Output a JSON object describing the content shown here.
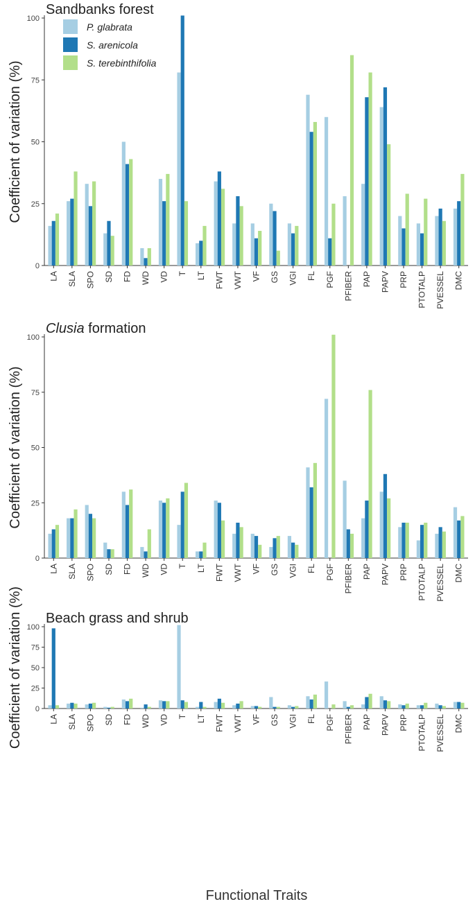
{
  "figure": {
    "xlabel": "Functional  Traits",
    "colors": {
      "P. glabrata": "#a6cee3",
      "S. arenicola": "#1f78b4",
      "S. terebinthifolia": "#b2df8a"
    }
  },
  "chart_data": [
    {
      "type": "bar",
      "title": "Sandbanks forest",
      "title_italic": "",
      "title_rest": "Sandbanks forest",
      "xlabel": "",
      "ylabel": "Coefficient of variation (%)",
      "ylim": [
        0,
        100
      ],
      "yticks": [
        0,
        25,
        50,
        75,
        100
      ],
      "grid": false,
      "legend": "top-left",
      "categories": [
        "LA",
        "SLA",
        "SPO",
        "SD",
        "FD",
        "WD",
        "VD",
        "T",
        "LT",
        "FWT",
        "VWT",
        "VF",
        "GS",
        "VGI",
        "FL",
        "PGF",
        "PFIBER",
        "PAP",
        "PAPV",
        "PRP",
        "PTOTALP",
        "PVESSEL",
        "DMC"
      ],
      "series": [
        {
          "name": "P. glabrata",
          "values": [
            16,
            26,
            33,
            13,
            50,
            7,
            35,
            78,
            9,
            34,
            17,
            17,
            25,
            17,
            69,
            60,
            28,
            33,
            64,
            20,
            17,
            20,
            23
          ]
        },
        {
          "name": "S. arenicola",
          "values": [
            18,
            27,
            24,
            18,
            41,
            3,
            26,
            101,
            10,
            38,
            28,
            11,
            22,
            13,
            54,
            11,
            0,
            68,
            72,
            15,
            13,
            23,
            26
          ]
        },
        {
          "name": "S. terebinthifolia",
          "values": [
            21,
            38,
            34,
            12,
            43,
            7,
            37,
            26,
            16,
            31,
            24,
            14,
            6,
            16,
            58,
            25,
            85,
            78,
            49,
            29,
            27,
            18,
            37
          ]
        }
      ]
    },
    {
      "type": "bar",
      "title": "Clusia formation",
      "title_italic": "Clusia",
      "title_rest": " formation",
      "xlabel": "",
      "ylabel": "Coefficient of variation (%)",
      "ylim": [
        0,
        100
      ],
      "yticks": [
        0,
        25,
        50,
        75,
        100
      ],
      "grid": false,
      "legend": "",
      "categories": [
        "LA",
        "SLA",
        "SPO",
        "SD",
        "FD",
        "WD",
        "VD",
        "T",
        "LT",
        "FWT",
        "VWT",
        "VF",
        "GS",
        "VGI",
        "FL",
        "PGF",
        "PFIBER",
        "PAP",
        "PAPV",
        "PRP",
        "PTOTALP",
        "PVESSEL",
        "DMC"
      ],
      "series": [
        {
          "name": "P. glabrata",
          "values": [
            11,
            18,
            24,
            7,
            30,
            5,
            26,
            15,
            3,
            26,
            11,
            11,
            5,
            10,
            41,
            72,
            35,
            18,
            30,
            14,
            8,
            11,
            23
          ]
        },
        {
          "name": "S. arenicola",
          "values": [
            13,
            18,
            20,
            4,
            24,
            3,
            25,
            30,
            3,
            25,
            16,
            10,
            9,
            7,
            32,
            0,
            13,
            26,
            38,
            16,
            15,
            14,
            17
          ]
        },
        {
          "name": "S. terebinthifolia",
          "values": [
            15,
            22,
            18,
            4,
            31,
            13,
            27,
            34,
            7,
            17,
            14,
            6,
            10,
            6,
            43,
            101,
            11,
            76,
            27,
            16,
            16,
            12,
            19
          ]
        }
      ]
    },
    {
      "type": "bar",
      "title": "Beach grass and shrub",
      "title_italic": "",
      "title_rest": "Beach grass and shrub",
      "xlabel": "Functional  Traits",
      "ylabel": "Coefficient of variation (%)",
      "ylim": [
        0,
        100
      ],
      "yticks": [
        0,
        25,
        50,
        75,
        100
      ],
      "grid": false,
      "legend": "",
      "categories": [
        "LA",
        "SLA",
        "SPO",
        "SD",
        "FD",
        "WD",
        "VD",
        "T",
        "LT",
        "FWT",
        "VWT",
        "VF",
        "GS",
        "VGI",
        "FL",
        "PGF",
        "PFIBER",
        "PAP",
        "PAPV",
        "PRP",
        "PTOTALP",
        "PVESSEL",
        "DMC"
      ],
      "series": [
        {
          "name": "P. glabrata",
          "values": [
            4,
            6,
            5,
            2,
            11,
            1,
            10,
            102,
            2,
            8,
            4,
            3,
            14,
            4,
            15,
            33,
            9,
            5,
            15,
            5,
            4,
            6,
            8
          ]
        },
        {
          "name": "S. arenicola",
          "values": [
            98,
            7,
            6,
            1,
            9,
            5,
            9,
            10,
            8,
            12,
            6,
            3,
            2,
            2,
            11,
            0,
            2,
            14,
            10,
            4,
            4,
            4,
            8
          ]
        },
        {
          "name": "S. terebinthifolia",
          "values": [
            4,
            6,
            7,
            2,
            12,
            2,
            9,
            8,
            2,
            7,
            9,
            2,
            2,
            3,
            17,
            5,
            4,
            18,
            9,
            6,
            7,
            3,
            7
          ]
        }
      ]
    }
  ]
}
